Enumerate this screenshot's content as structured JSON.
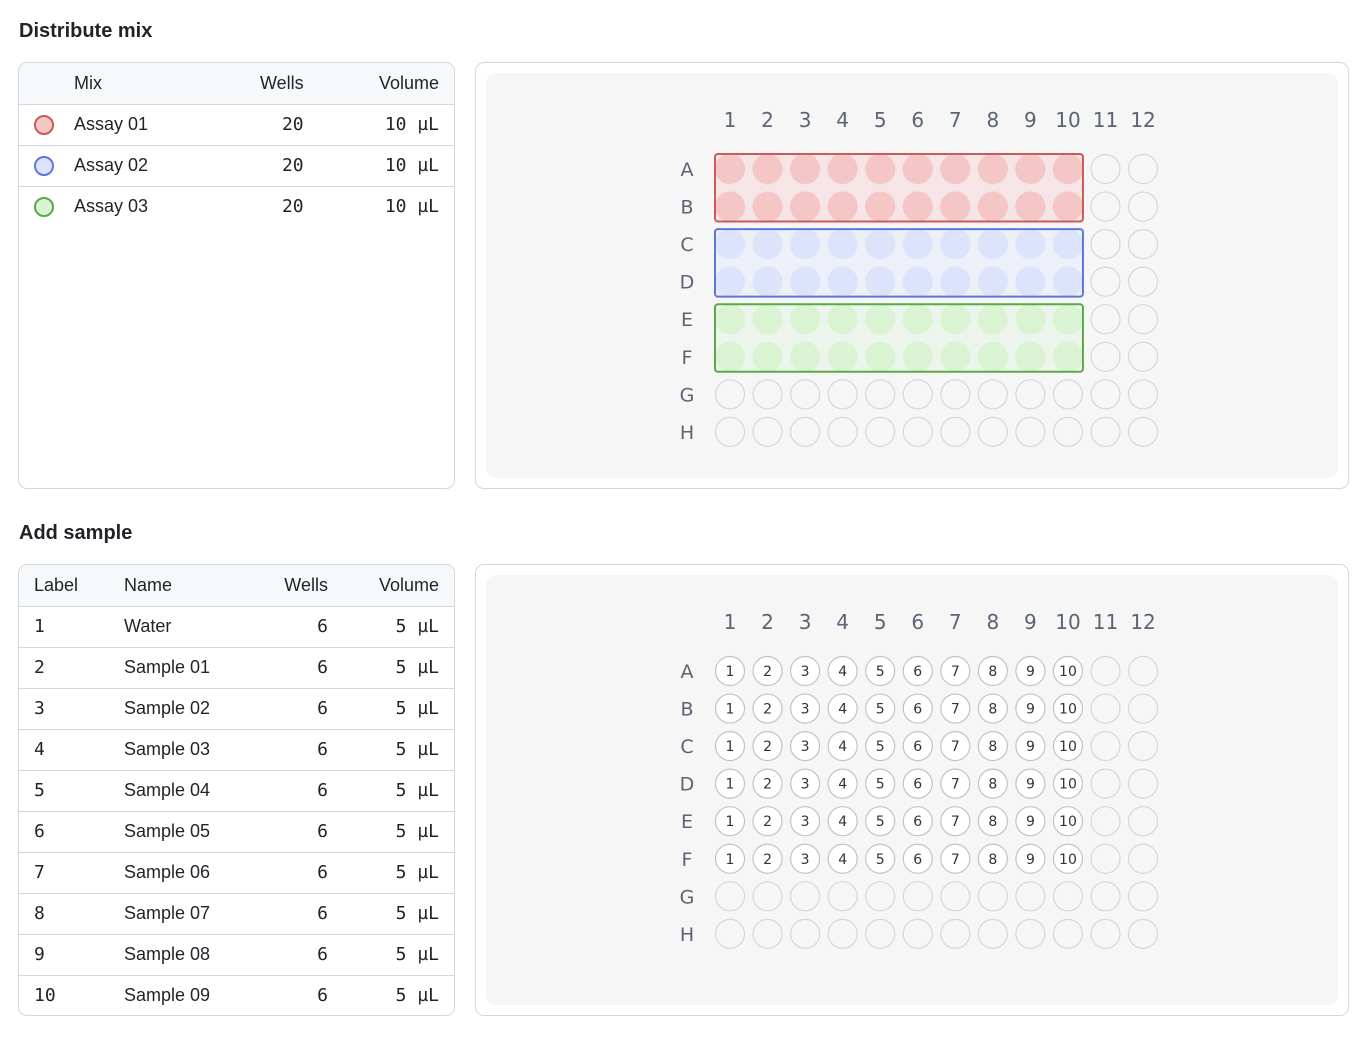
{
  "sections": {
    "distribute": {
      "title": "Distribute mix"
    },
    "sample": {
      "title": "Add sample"
    }
  },
  "mix_table": {
    "headers": {
      "mix": "Mix",
      "wells": "Wells",
      "volume": "Volume"
    },
    "rows": [
      {
        "name": "Assay 01",
        "wells": "20",
        "volume": "10 µL",
        "color": "#f4c7c7",
        "stroke": "#cd5a5a"
      },
      {
        "name": "Assay 02",
        "wells": "20",
        "volume": "10 µL",
        "color": "#dde3fb",
        "stroke": "#5c78d6"
      },
      {
        "name": "Assay 03",
        "wells": "20",
        "volume": "10 µL",
        "color": "#d9f3d3",
        "stroke": "#5aa84a"
      }
    ]
  },
  "sample_table": {
    "headers": {
      "label": "Label",
      "name": "Name",
      "wells": "Wells",
      "volume": "Volume"
    },
    "rows": [
      {
        "label": "1",
        "name": "Water",
        "wells": "6",
        "volume": "5 µL"
      },
      {
        "label": "2",
        "name": "Sample 01",
        "wells": "6",
        "volume": "5 µL"
      },
      {
        "label": "3",
        "name": "Sample 02",
        "wells": "6",
        "volume": "5 µL"
      },
      {
        "label": "4",
        "name": "Sample 03",
        "wells": "6",
        "volume": "5 µL"
      },
      {
        "label": "5",
        "name": "Sample 04",
        "wells": "6",
        "volume": "5 µL"
      },
      {
        "label": "6",
        "name": "Sample 05",
        "wells": "6",
        "volume": "5 µL"
      },
      {
        "label": "7",
        "name": "Sample 06",
        "wells": "6",
        "volume": "5 µL"
      },
      {
        "label": "8",
        "name": "Sample 07",
        "wells": "6",
        "volume": "5 µL"
      },
      {
        "label": "9",
        "name": "Sample 08",
        "wells": "6",
        "volume": "5 µL"
      },
      {
        "label": "10",
        "name": "Sample 09",
        "wells": "6",
        "volume": "5 µL"
      }
    ]
  },
  "plate": {
    "columns": [
      "1",
      "2",
      "3",
      "4",
      "5",
      "6",
      "7",
      "8",
      "9",
      "10",
      "11",
      "12"
    ],
    "rows": [
      "A",
      "B",
      "C",
      "D",
      "E",
      "F",
      "G",
      "H"
    ]
  },
  "mix_plate": {
    "groups": [
      {
        "mix": "Assay 01",
        "rows": [
          "A",
          "B"
        ],
        "columns": [
          "1",
          "10"
        ]
      },
      {
        "mix": "Assay 02",
        "rows": [
          "C",
          "D"
        ],
        "columns": [
          "1",
          "10"
        ]
      },
      {
        "mix": "Assay 03",
        "rows": [
          "E",
          "F"
        ],
        "columns": [
          "1",
          "10"
        ]
      }
    ]
  },
  "sample_plate": {
    "rows": [
      "A",
      "B",
      "C",
      "D",
      "E",
      "F"
    ],
    "well_labels": [
      "1",
      "2",
      "3",
      "4",
      "5",
      "6",
      "7",
      "8",
      "9",
      "10"
    ]
  }
}
